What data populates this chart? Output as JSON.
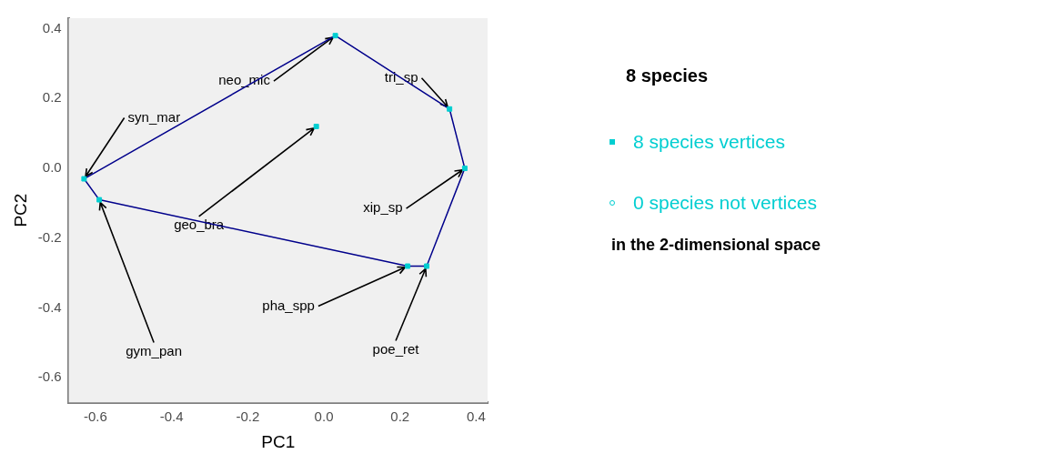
{
  "chart_data": {
    "type": "scatter",
    "xlabel": "PC1",
    "ylabel": "PC2",
    "legend_title": "8 species",
    "legend": "right",
    "grid": false,
    "xlim": [
      -0.67,
      0.43
    ],
    "ylim": [
      -0.67,
      0.43
    ],
    "xticks": [
      -0.6,
      -0.4,
      -0.2,
      {
        "value": 0,
        "label": "0.0"
      },
      0.2,
      0.4
    ],
    "yticks": [
      -0.6,
      -0.4,
      -0.2,
      {
        "value": 0,
        "label": "0.0"
      },
      0.2,
      0.4
    ],
    "series": [
      {
        "name": "8 species vertices",
        "color": "#00ced1",
        "marker": "square",
        "x": [
          0.03,
          0.33,
          0.37,
          0.27,
          0.22,
          -0.59,
          -0.63,
          -0.02
        ],
        "values": [
          0.38,
          0.17,
          0.0,
          -0.28,
          -0.28,
          -0.09,
          -0.03,
          0.12
        ]
      },
      {
        "name": "0 species not vertices",
        "color": "#00ced1",
        "marker": "circle"
      },
      {
        "type": "line",
        "color": "#00008b",
        "marker": "none",
        "x": [
          -0.63,
          0.03,
          0.33,
          0.37
        ],
        "values": [
          -0.03,
          0.38,
          0.17,
          0.0
        ]
      },
      {
        "type": "line",
        "color": "#00008b",
        "marker": "none",
        "x": [
          -0.63,
          -0.59,
          0.22,
          0.27,
          0.37
        ],
        "values": [
          -0.03,
          -0.09,
          -0.28,
          -0.28,
          0.0
        ]
      }
    ],
    "annotations": [
      {
        "text": "neo_mic",
        "x": 0.03,
        "y": 0.38
      },
      {
        "text": "tri_sp",
        "x": 0.33,
        "y": 0.17
      },
      {
        "text": "xip_sp",
        "x": 0.37,
        "y": 0.0
      },
      {
        "text": "poe_ret",
        "x": 0.27,
        "y": -0.28
      },
      {
        "text": "pha_spp",
        "x": 0.22,
        "y": -0.28
      },
      {
        "text": "gym_pan",
        "x": -0.59,
        "y": -0.09
      },
      {
        "text": "syn_mar",
        "x": -0.63,
        "y": -0.03
      },
      {
        "text": "geo_bra",
        "x": -0.02,
        "y": 0.12
      },
      "in the 2-dimensional space"
    ]
  }
}
